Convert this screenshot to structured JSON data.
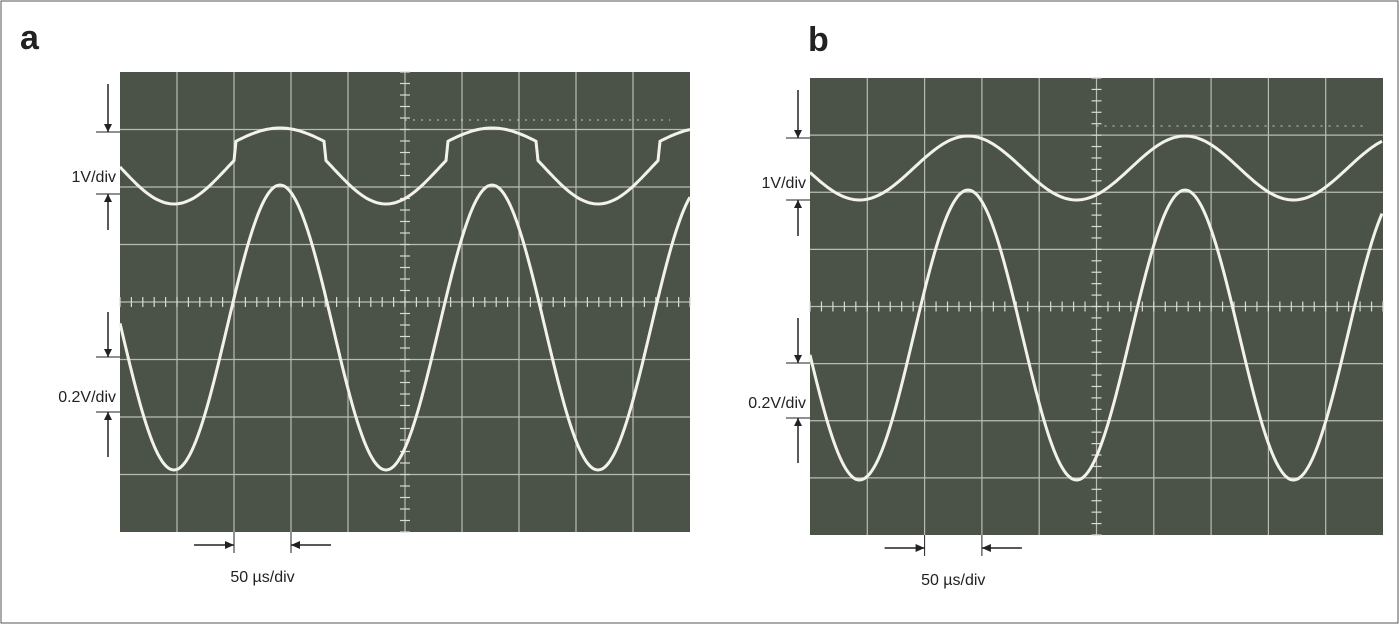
{
  "panels": [
    {
      "label": "a",
      "top_scale": "1V/div",
      "bottom_scale": "0.2V/div",
      "timebase": "50 µs/div"
    },
    {
      "label": "b",
      "top_scale": "1V/div",
      "bottom_scale": "0.2V/div",
      "timebase": "50 µs/div"
    }
  ]
}
